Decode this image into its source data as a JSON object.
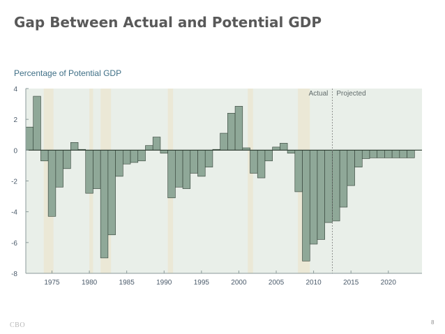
{
  "slide": {
    "title": "Gap Between Actual and Potential GDP",
    "footer_logo": "CBO",
    "page_number": "8"
  },
  "colors": {
    "bar_fill": "#8fa898",
    "bar_stroke": "#2f3d33",
    "recession_fill": "#ebe8d6",
    "chart_background": "#e9efe9",
    "axis_text": "#4a5a6a",
    "ylabel_text": "#3f6f86"
  },
  "chart_data": {
    "type": "bar",
    "title": "",
    "ylabel": "Percentage of Potential GDP",
    "xlabel": "",
    "ylim": [
      -8,
      4
    ],
    "y_ticks": [
      4,
      2,
      0,
      -2,
      -4,
      -6,
      -8
    ],
    "y_tick_labels": [
      "4",
      "2",
      "0",
      "-2",
      "-4",
      "-6",
      "-8"
    ],
    "x_ticks": [
      1975,
      1980,
      1985,
      1990,
      1995,
      2000,
      2005,
      2010,
      2015,
      2020
    ],
    "x_tick_labels": [
      "1975",
      "1980",
      "1985",
      "1990",
      "1995",
      "2000",
      "2005",
      "2010",
      "2015",
      "2020"
    ],
    "grid": false,
    "categories": [
      1972,
      1973,
      1974,
      1975,
      1976,
      1977,
      1978,
      1979,
      1980,
      1981,
      1982,
      1983,
      1984,
      1985,
      1986,
      1987,
      1988,
      1989,
      1990,
      1991,
      1992,
      1993,
      1994,
      1995,
      1996,
      1997,
      1998,
      1999,
      2000,
      2001,
      2002,
      2003,
      2004,
      2005,
      2006,
      2007,
      2008,
      2009,
      2010,
      2011,
      2012,
      2013,
      2014,
      2015,
      2016,
      2017,
      2018,
      2019,
      2020,
      2021,
      2022,
      2023
    ],
    "values": [
      1.5,
      3.5,
      -0.7,
      -4.3,
      -2.4,
      -1.2,
      0.5,
      0.05,
      -2.8,
      -2.5,
      -7.0,
      -5.5,
      -1.7,
      -0.9,
      -0.8,
      -0.7,
      0.3,
      0.85,
      -0.2,
      -3.1,
      -2.4,
      -2.5,
      -1.5,
      -1.7,
      -1.1,
      0.05,
      1.1,
      2.4,
      2.85,
      0.15,
      -1.5,
      -1.8,
      -0.7,
      0.2,
      0.45,
      -0.2,
      -2.7,
      -7.2,
      -6.1,
      -5.8,
      -4.7,
      -4.6,
      -3.7,
      -2.3,
      -1.1,
      -0.55,
      -0.5,
      -0.5,
      -0.5,
      -0.5,
      -0.5,
      -0.5
    ],
    "recessions": [
      [
        1973.9,
        1975.2
      ],
      [
        1980.0,
        1980.5
      ],
      [
        1981.5,
        1982.9
      ],
      [
        1990.5,
        1991.2
      ],
      [
        2001.2,
        2001.9
      ],
      [
        2007.9,
        2009.5
      ]
    ],
    "projection_start": 2012.5,
    "annotations": [
      "Actual",
      "Projected"
    ]
  }
}
